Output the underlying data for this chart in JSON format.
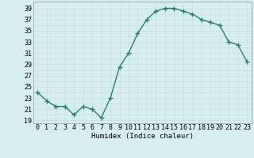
{
  "x": [
    0,
    1,
    2,
    3,
    4,
    5,
    6,
    7,
    8,
    9,
    10,
    11,
    12,
    13,
    14,
    15,
    16,
    17,
    18,
    19,
    20,
    21,
    22,
    23
  ],
  "y": [
    24.0,
    22.5,
    21.5,
    21.5,
    20.0,
    21.5,
    21.0,
    19.5,
    23.0,
    28.5,
    31.0,
    34.5,
    37.0,
    38.5,
    39.0,
    39.0,
    38.5,
    38.0,
    37.0,
    36.5,
    36.0,
    33.0,
    32.5,
    29.5
  ],
  "line_color": "#2e7d6e",
  "marker": "+",
  "marker_size": 4,
  "bg_color": "#d6eef0",
  "grid_color": "#c8dfe0",
  "xlabel": "Humidex (Indice chaleur)",
  "ylabel_ticks": [
    19,
    21,
    23,
    25,
    27,
    29,
    31,
    33,
    35,
    37,
    39
  ],
  "xlim": [
    -0.5,
    23.5
  ],
  "ylim": [
    18.5,
    40.2
  ],
  "xticks": [
    0,
    1,
    2,
    3,
    4,
    5,
    6,
    7,
    8,
    9,
    10,
    11,
    12,
    13,
    14,
    15,
    16,
    17,
    18,
    19,
    20,
    21,
    22,
    23
  ],
  "xlabel_fontsize": 6.5,
  "tick_fontsize": 6,
  "line_width": 1.0
}
